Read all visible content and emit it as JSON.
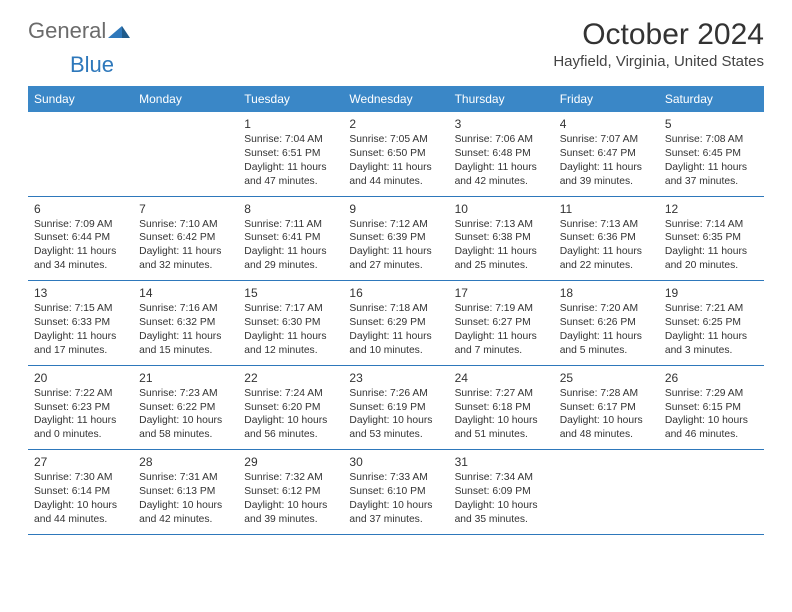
{
  "brand": {
    "word1": "General",
    "word2": "Blue",
    "arrow_color": "#2e78bb"
  },
  "title": "October 2024",
  "location": "Hayfield, Virginia, United States",
  "colors": {
    "header_bg": "#3a87c7",
    "header_text": "#ffffff",
    "cell_border": "#2e78bb",
    "text": "#333333",
    "logo_gray": "#6b6b6b",
    "logo_blue": "#2e78bb",
    "page_bg": "#ffffff"
  },
  "day_headers": [
    "Sunday",
    "Monday",
    "Tuesday",
    "Wednesday",
    "Thursday",
    "Friday",
    "Saturday"
  ],
  "weeks": [
    [
      null,
      null,
      {
        "n": "1",
        "sr": "7:04 AM",
        "ss": "6:51 PM",
        "dl": "11 hours and 47 minutes."
      },
      {
        "n": "2",
        "sr": "7:05 AM",
        "ss": "6:50 PM",
        "dl": "11 hours and 44 minutes."
      },
      {
        "n": "3",
        "sr": "7:06 AM",
        "ss": "6:48 PM",
        "dl": "11 hours and 42 minutes."
      },
      {
        "n": "4",
        "sr": "7:07 AM",
        "ss": "6:47 PM",
        "dl": "11 hours and 39 minutes."
      },
      {
        "n": "5",
        "sr": "7:08 AM",
        "ss": "6:45 PM",
        "dl": "11 hours and 37 minutes."
      }
    ],
    [
      {
        "n": "6",
        "sr": "7:09 AM",
        "ss": "6:44 PM",
        "dl": "11 hours and 34 minutes."
      },
      {
        "n": "7",
        "sr": "7:10 AM",
        "ss": "6:42 PM",
        "dl": "11 hours and 32 minutes."
      },
      {
        "n": "8",
        "sr": "7:11 AM",
        "ss": "6:41 PM",
        "dl": "11 hours and 29 minutes."
      },
      {
        "n": "9",
        "sr": "7:12 AM",
        "ss": "6:39 PM",
        "dl": "11 hours and 27 minutes."
      },
      {
        "n": "10",
        "sr": "7:13 AM",
        "ss": "6:38 PM",
        "dl": "11 hours and 25 minutes."
      },
      {
        "n": "11",
        "sr": "7:13 AM",
        "ss": "6:36 PM",
        "dl": "11 hours and 22 minutes."
      },
      {
        "n": "12",
        "sr": "7:14 AM",
        "ss": "6:35 PM",
        "dl": "11 hours and 20 minutes."
      }
    ],
    [
      {
        "n": "13",
        "sr": "7:15 AM",
        "ss": "6:33 PM",
        "dl": "11 hours and 17 minutes."
      },
      {
        "n": "14",
        "sr": "7:16 AM",
        "ss": "6:32 PM",
        "dl": "11 hours and 15 minutes."
      },
      {
        "n": "15",
        "sr": "7:17 AM",
        "ss": "6:30 PM",
        "dl": "11 hours and 12 minutes."
      },
      {
        "n": "16",
        "sr": "7:18 AM",
        "ss": "6:29 PM",
        "dl": "11 hours and 10 minutes."
      },
      {
        "n": "17",
        "sr": "7:19 AM",
        "ss": "6:27 PM",
        "dl": "11 hours and 7 minutes."
      },
      {
        "n": "18",
        "sr": "7:20 AM",
        "ss": "6:26 PM",
        "dl": "11 hours and 5 minutes."
      },
      {
        "n": "19",
        "sr": "7:21 AM",
        "ss": "6:25 PM",
        "dl": "11 hours and 3 minutes."
      }
    ],
    [
      {
        "n": "20",
        "sr": "7:22 AM",
        "ss": "6:23 PM",
        "dl": "11 hours and 0 minutes."
      },
      {
        "n": "21",
        "sr": "7:23 AM",
        "ss": "6:22 PM",
        "dl": "10 hours and 58 minutes."
      },
      {
        "n": "22",
        "sr": "7:24 AM",
        "ss": "6:20 PM",
        "dl": "10 hours and 56 minutes."
      },
      {
        "n": "23",
        "sr": "7:26 AM",
        "ss": "6:19 PM",
        "dl": "10 hours and 53 minutes."
      },
      {
        "n": "24",
        "sr": "7:27 AM",
        "ss": "6:18 PM",
        "dl": "10 hours and 51 minutes."
      },
      {
        "n": "25",
        "sr": "7:28 AM",
        "ss": "6:17 PM",
        "dl": "10 hours and 48 minutes."
      },
      {
        "n": "26",
        "sr": "7:29 AM",
        "ss": "6:15 PM",
        "dl": "10 hours and 46 minutes."
      }
    ],
    [
      {
        "n": "27",
        "sr": "7:30 AM",
        "ss": "6:14 PM",
        "dl": "10 hours and 44 minutes."
      },
      {
        "n": "28",
        "sr": "7:31 AM",
        "ss": "6:13 PM",
        "dl": "10 hours and 42 minutes."
      },
      {
        "n": "29",
        "sr": "7:32 AM",
        "ss": "6:12 PM",
        "dl": "10 hours and 39 minutes."
      },
      {
        "n": "30",
        "sr": "7:33 AM",
        "ss": "6:10 PM",
        "dl": "10 hours and 37 minutes."
      },
      {
        "n": "31",
        "sr": "7:34 AM",
        "ss": "6:09 PM",
        "dl": "10 hours and 35 minutes."
      },
      null,
      null
    ]
  ],
  "labels": {
    "sunrise": "Sunrise:",
    "sunset": "Sunset:",
    "daylight": "Daylight:"
  }
}
